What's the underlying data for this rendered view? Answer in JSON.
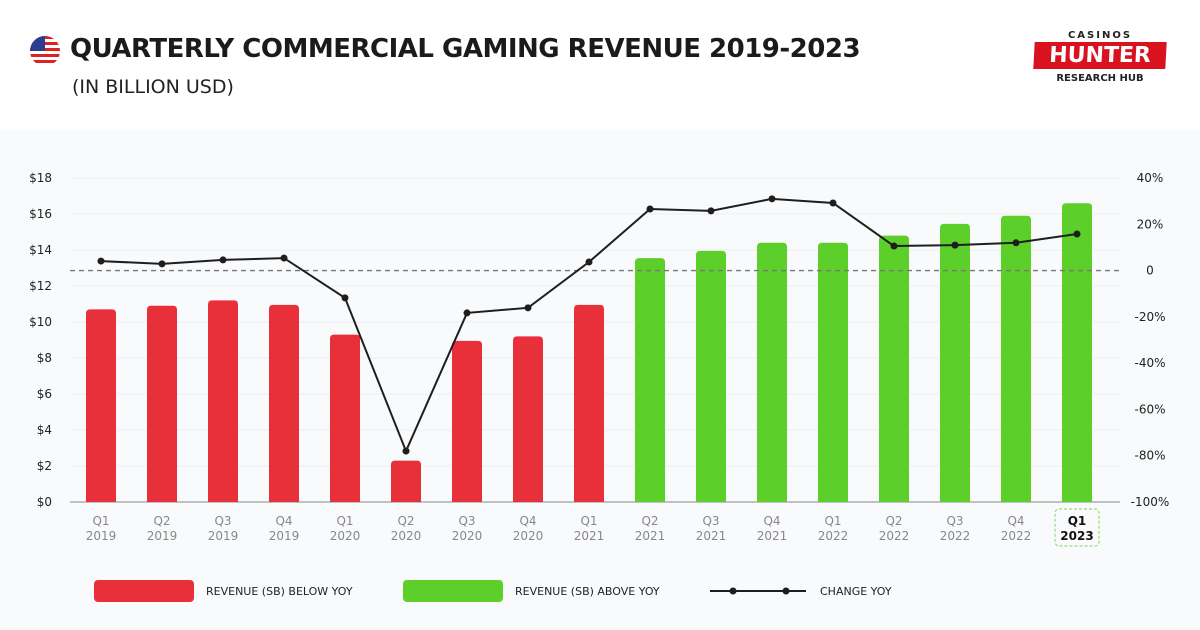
{
  "header": {
    "title": "QUARTERLY COMMERCIAL GAMING REVENUE 2019-2023",
    "subtitle": "(IN BILLION USD)",
    "flag_icon": "us-flag-icon"
  },
  "logo": {
    "line1": "CASINOS",
    "line2": "HUNTER",
    "line3": "RESEARCH HUB"
  },
  "colors": {
    "below": "#e8303a",
    "above": "#5ccf2a",
    "line": "#1e1e1e"
  },
  "chart_data": {
    "type": "bar+line",
    "categories": [
      [
        "Q1",
        "2019"
      ],
      [
        "Q2",
        "2019"
      ],
      [
        "Q3",
        "2019"
      ],
      [
        "Q4",
        "2019"
      ],
      [
        "Q1",
        "2020"
      ],
      [
        "Q2",
        "2020"
      ],
      [
        "Q3",
        "2020"
      ],
      [
        "Q4",
        "2020"
      ],
      [
        "Q1",
        "2021"
      ],
      [
        "Q2",
        "2021"
      ],
      [
        "Q3",
        "2021"
      ],
      [
        "Q4",
        "2021"
      ],
      [
        "Q1",
        "2022"
      ],
      [
        "Q2",
        "2022"
      ],
      [
        "Q3",
        "2022"
      ],
      [
        "Q4",
        "2022"
      ],
      [
        "Q1",
        "2023"
      ]
    ],
    "highlighted_category": "Q1 2023",
    "revenue": [
      10.7,
      10.9,
      11.2,
      10.95,
      9.3,
      2.3,
      8.95,
      9.2,
      10.95,
      13.55,
      13.95,
      14.4,
      14.4,
      14.8,
      15.45,
      15.9,
      16.6
    ],
    "above_yoy": [
      false,
      false,
      false,
      false,
      false,
      false,
      false,
      false,
      false,
      true,
      true,
      true,
      true,
      true,
      true,
      true,
      true
    ],
    "change_yoy": [
      4.1,
      2.9,
      4.6,
      5.4,
      -11.8,
      -78,
      -18.3,
      -16.1,
      3.7,
      26.6,
      25.8,
      31,
      29.2,
      10.6,
      11,
      12,
      15.8
    ],
    "y_left": {
      "range": [
        0,
        18
      ],
      "ticks": [
        "$0",
        "$2",
        "$4",
        "$6",
        "$8",
        "$10",
        "$12",
        "$14",
        "$16",
        "$18"
      ]
    },
    "y_right": {
      "range": [
        -100,
        40
      ],
      "ticks": [
        "-100%",
        "-80%",
        "-60%",
        "-40%",
        "-20%",
        "0",
        "20%",
        "40%"
      ]
    },
    "grid": true,
    "legend": {
      "placement": "bottom",
      "items": [
        "REVENUE (SB) BELOW YOY",
        "REVENUE (SB) ABOVE YOY",
        "CHANGE YOY"
      ]
    }
  }
}
